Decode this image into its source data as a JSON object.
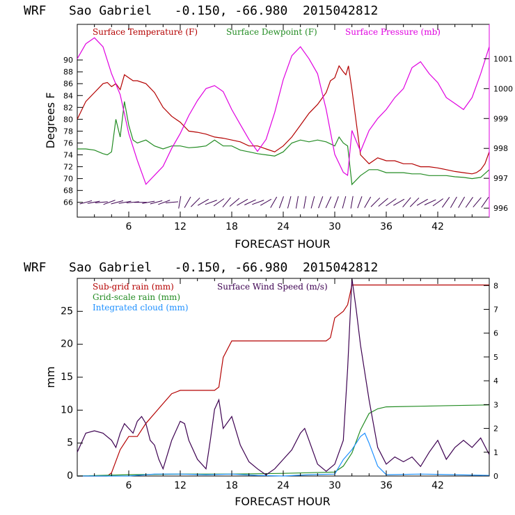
{
  "colors": {
    "temperature": "#b40000",
    "dewpoint": "#228b22",
    "pressure": "#e000e0",
    "subgrid_rain": "#b40000",
    "gridscale_rain": "#228b22",
    "cloud": "#1e90ff",
    "wind": "#3c0050",
    "wind_barb": "#3c0050"
  },
  "chart_data": [
    {
      "type": "line",
      "title": "WRF   Sao Gabriel   -0.150, -66.980  2015042812",
      "xlabel": "FORECAST HOUR",
      "ylabel": "Degrees F",
      "xlim": [
        0,
        48
      ],
      "ylim": [
        63.5,
        96
      ],
      "y2lim": [
        995.7,
        1002.15
      ],
      "xticks": [
        "6",
        "12",
        "18",
        "24",
        "30",
        "36",
        "42"
      ],
      "yticks": [
        "66",
        "68",
        "70",
        "72",
        "74",
        "76",
        "78",
        "80",
        "82",
        "84",
        "86",
        "88",
        "90"
      ],
      "y2ticks": [
        "996",
        "997",
        "998",
        "999",
        "1000",
        "1001"
      ],
      "legend": [
        "Surface Temperature (F)",
        "Surface Dewpoint (F)",
        "Surface Pressure (mb)"
      ],
      "series": [
        {
          "name": "Surface Temperature (F)",
          "axis": "left",
          "x": [
            0,
            1,
            2,
            3,
            3.5,
            4,
            4.5,
            5,
            5.5,
            6,
            6.5,
            7,
            8,
            9,
            10,
            11,
            12,
            13,
            14,
            15,
            16,
            17,
            18,
            19,
            20,
            21,
            22,
            23,
            24,
            25,
            26,
            27,
            28,
            29,
            29.5,
            30,
            30.5,
            31,
            31.3,
            31.6,
            32,
            33,
            34,
            35,
            36,
            37,
            38,
            39,
            40,
            41,
            42,
            43,
            44,
            45,
            46,
            46.5,
            47,
            47.5,
            48
          ],
          "values": [
            80,
            83,
            84.5,
            86,
            86.2,
            85.5,
            86,
            85,
            87.5,
            87,
            86.5,
            86.5,
            86,
            84.5,
            82,
            80.5,
            79.5,
            78,
            77.8,
            77.5,
            77,
            76.8,
            76.5,
            76.2,
            75.5,
            75.5,
            75,
            74.5,
            75.5,
            77,
            79,
            81,
            82.5,
            84.5,
            86.5,
            87,
            89,
            88,
            87.5,
            89,
            85,
            74,
            72.5,
            73.5,
            73,
            73,
            72.5,
            72.5,
            72,
            72,
            71.8,
            71.5,
            71.2,
            71,
            70.8,
            71,
            71.5,
            72.5,
            74.5
          ]
        },
        {
          "name": "Surface Dewpoint (F)",
          "axis": "left",
          "x": [
            0,
            1,
            2,
            3,
            3.5,
            4,
            4.5,
            5,
            5.5,
            6,
            6.5,
            7,
            8,
            9,
            10,
            11,
            12,
            13,
            14,
            15,
            16,
            17,
            18,
            19,
            20,
            21,
            22,
            23,
            24,
            25,
            26,
            27,
            28,
            29,
            30,
            30.5,
            31,
            31.5,
            32,
            33,
            34,
            35,
            36,
            37,
            38,
            39,
            40,
            41,
            42,
            43,
            44,
            45,
            46,
            47,
            48
          ],
          "values": [
            75,
            75,
            74.8,
            74.2,
            74,
            74.5,
            80,
            77,
            83,
            79,
            76.5,
            76,
            76.5,
            75.5,
            75,
            75.5,
            75.5,
            75.2,
            75.3,
            75.5,
            76.5,
            75.5,
            75.5,
            74.8,
            74.5,
            74.2,
            74,
            73.8,
            74.5,
            76,
            76.5,
            76.2,
            76.5,
            76.2,
            75.5,
            77,
            76,
            75.5,
            69,
            70.5,
            71.5,
            71.5,
            71,
            71,
            71,
            70.8,
            70.8,
            70.5,
            70.5,
            70.5,
            70.3,
            70.2,
            70,
            70.2,
            71.5
          ]
        },
        {
          "name": "Surface Pressure (mb)",
          "axis": "right",
          "x": [
            0,
            1,
            2,
            3,
            4,
            5,
            6,
            7,
            8,
            9,
            10,
            11,
            12,
            13,
            14,
            15,
            16,
            17,
            18,
            19,
            20,
            21,
            22,
            23,
            24,
            25,
            26,
            27,
            28,
            29,
            30,
            31,
            31.5,
            32,
            33,
            34,
            35,
            36,
            37,
            38,
            39,
            40,
            41,
            42,
            43,
            44,
            45,
            46,
            47,
            48
          ],
          "values": [
            1001,
            1001.5,
            1001.7,
            1001.4,
            1000.5,
            999.8,
            998.5,
            997.6,
            996.8,
            997.1,
            997.4,
            998,
            998.5,
            999.1,
            999.6,
            1000,
            1000.1,
            999.9,
            999.3,
            998.8,
            998.3,
            997.9,
            998.3,
            999.2,
            1000.3,
            1001.1,
            1001.4,
            1001,
            1000.5,
            999.3,
            997.8,
            997.2,
            997.1,
            998.6,
            997.9,
            998.6,
            999,
            999.3,
            999.7,
            1000,
            1000.7,
            1000.9,
            1000.5,
            1000.2,
            999.7,
            999.5,
            999.3,
            999.7,
            1000.5,
            1001.4
          ]
        }
      ],
      "wind_barbs": {
        "level": 66,
        "angles": [
          15,
          10,
          5,
          20,
          15,
          10,
          5,
          0,
          10,
          15,
          20,
          5,
          80,
          60,
          45,
          30,
          20,
          35,
          50,
          40,
          30,
          25,
          20,
          30,
          60,
          70,
          75,
          80,
          80,
          75,
          70,
          65,
          70,
          75,
          80,
          70,
          60,
          45,
          40,
          35,
          30,
          50,
          45,
          30,
          25,
          35,
          55,
          60,
          60,
          55,
          50,
          55
        ]
      }
    },
    {
      "type": "line",
      "title": "WRF   Sao Gabriel   -0.150, -66.980  2015042812",
      "xlabel": "FORECAST HOUR",
      "ylabel": "mm",
      "xlim": [
        0,
        48
      ],
      "ylim": [
        0,
        30
      ],
      "y2lim": [
        0,
        8.3
      ],
      "xticks": [
        "6",
        "12",
        "18",
        "24",
        "30",
        "36",
        "42"
      ],
      "yticks": [
        "0",
        "5",
        "10",
        "15",
        "20",
        "25"
      ],
      "y2ticks": [
        "0",
        "1",
        "2",
        "3",
        "4",
        "5",
        "6",
        "7",
        "8"
      ],
      "legend": [
        "Sub-grid rain (mm)",
        "Surface Wind Speed (m/s)",
        "Grid-scale rain (mm)",
        "Integrated cloud (mm)"
      ],
      "series": [
        {
          "name": "Sub-grid rain (mm)",
          "axis": "left",
          "x": [
            0,
            3.5,
            4,
            5,
            6,
            7,
            7.5,
            8,
            9,
            10,
            11,
            12,
            13,
            14,
            15,
            16,
            16.5,
            17,
            18,
            19,
            20,
            22,
            24,
            26,
            28,
            29,
            29.5,
            30,
            31,
            31.5,
            32,
            48
          ],
          "values": [
            0,
            0,
            0.5,
            4,
            6,
            6,
            7,
            8,
            9.5,
            11,
            12.5,
            13,
            13,
            13,
            13,
            13,
            13.5,
            18,
            20.5,
            20.5,
            20.5,
            20.5,
            20.5,
            20.5,
            20.5,
            20.5,
            21,
            24,
            25,
            26,
            29,
            29
          ]
        },
        {
          "name": "Grid-scale rain (mm)",
          "axis": "left",
          "x": [
            0,
            6,
            12,
            18,
            24,
            30,
            31,
            32,
            33,
            34,
            35,
            36,
            40,
            44,
            48
          ],
          "values": [
            0,
            0.2,
            0.3,
            0.3,
            0.4,
            0.6,
            1.5,
            3.5,
            7,
            9.5,
            10.2,
            10.5,
            10.6,
            10.7,
            10.8
          ]
        },
        {
          "name": "Integrated cloud (mm)",
          "axis": "left",
          "x": [
            0,
            6,
            9,
            12,
            15,
            18,
            21,
            24,
            27,
            30,
            31,
            32,
            33,
            33.5,
            34,
            35,
            36,
            40,
            44,
            48
          ],
          "values": [
            0,
            0,
            0.3,
            0.3,
            0.2,
            0.3,
            0.1,
            0,
            0.2,
            0.3,
            2.5,
            4,
            6,
            6.5,
            5,
            1.5,
            0.2,
            0.3,
            0.2,
            0.1
          ]
        },
        {
          "name": "Surface Wind Speed (m/s)",
          "axis": "right",
          "x": [
            0,
            1,
            2,
            3,
            4,
            4.5,
            5,
            5.5,
            6,
            6.5,
            7,
            7.5,
            8,
            8.5,
            9,
            9.5,
            10,
            11,
            12,
            12.5,
            13,
            14,
            15,
            15.5,
            16,
            16.5,
            17,
            18,
            19,
            20,
            21,
            22,
            23,
            24,
            25,
            26,
            26.5,
            27,
            28,
            29,
            30,
            31,
            31.5,
            32,
            32.5,
            33,
            34,
            35,
            36,
            37,
            38,
            39,
            40,
            41,
            42,
            43,
            44,
            45,
            46,
            47,
            48
          ],
          "values": [
            1,
            1.8,
            1.9,
            1.8,
            1.5,
            1.2,
            1.8,
            2.2,
            2,
            1.8,
            2.3,
            2.5,
            2.2,
            1.5,
            1.3,
            0.7,
            0.3,
            1.5,
            2.3,
            2.2,
            1.5,
            0.7,
            0.3,
            1.5,
            2.8,
            3.2,
            2,
            2.5,
            1.3,
            0.6,
            0.3,
            0.05,
            0.3,
            0.7,
            1.1,
            1.8,
            2,
            1.5,
            0.5,
            0.2,
            0.5,
            1.5,
            4.5,
            8.3,
            7,
            5.5,
            3.2,
            1.2,
            0.5,
            0.8,
            0.6,
            0.8,
            0.4,
            1,
            1.5,
            0.7,
            1.2,
            1.5,
            1.2,
            1.6,
            0.9
          ]
        }
      ]
    }
  ]
}
